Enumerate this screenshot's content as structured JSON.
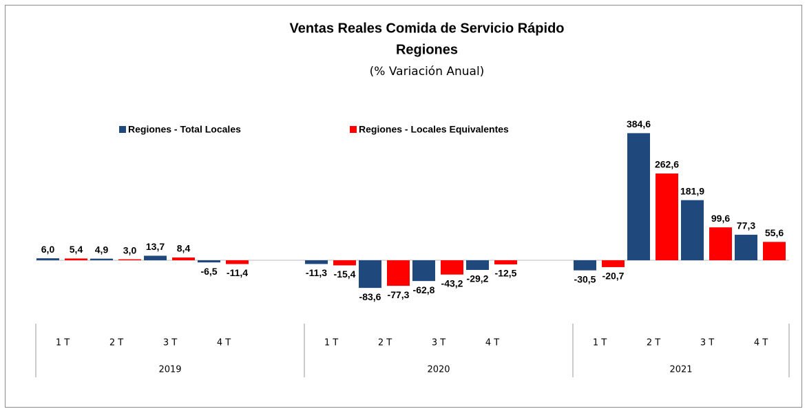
{
  "chart_data": {
    "type": "bar",
    "title": "Ventas Reales Comida de Servicio Rápido",
    "subtitle": "Regiones",
    "note": "(% Variación Anual)",
    "categories": [
      "1 T",
      "2 T",
      "3 T",
      "4 T",
      "1 T",
      "2 T",
      "3 T",
      "4 T",
      "1 T",
      "2 T",
      "3 T",
      "4 T"
    ],
    "category_groups": [
      "2019",
      "2020",
      "2021"
    ],
    "ylim": [
      -100,
      400
    ],
    "series": [
      {
        "name": "Regiones - Total Locales",
        "color": "#1f497d",
        "values": [
          6.0,
          4.9,
          13.7,
          -6.5,
          -11.3,
          -83.6,
          -62.8,
          -29.2,
          -30.5,
          384.6,
          181.9,
          77.3
        ],
        "value_labels": [
          "6,0",
          "4,9",
          "13,7",
          "-6,5",
          "-11,3",
          "-83,6",
          "-62,8",
          "-29,2",
          "-30,5",
          "384,6",
          "181,9",
          "77,3"
        ]
      },
      {
        "name": "Regiones - Locales Equivalentes",
        "color": "#ff0000",
        "values": [
          5.4,
          3.0,
          8.4,
          -11.4,
          -15.4,
          -77.3,
          -43.2,
          -12.5,
          -20.7,
          262.6,
          99.6,
          55.6
        ],
        "value_labels": [
          "5,4",
          "3,0",
          "8,4",
          "-11,4",
          "-15,4",
          "-77,3",
          "-43,2",
          "-12,5",
          "-20,7",
          "262,6",
          "99,6",
          "55,6"
        ]
      }
    ]
  }
}
